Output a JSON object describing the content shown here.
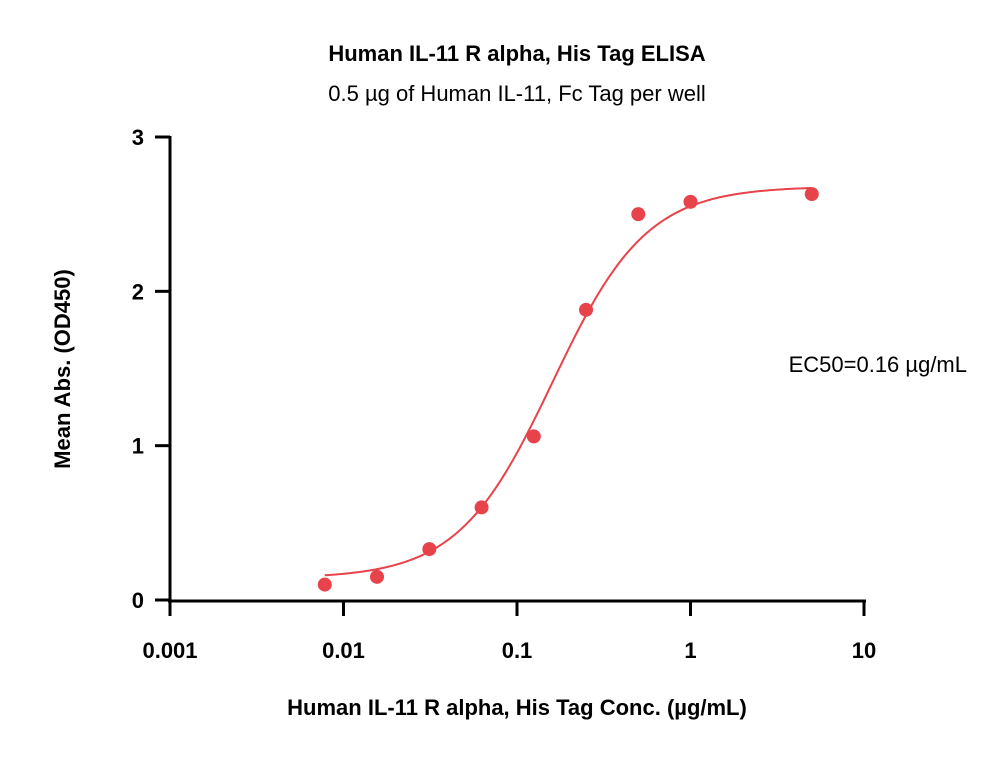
{
  "chart_data": {
    "type": "scatter",
    "title": "Human IL-11 R alpha, His Tag ELISA",
    "subtitle": "0.5 µg of Human IL-11, Fc Tag per well",
    "xlabel": "Human IL-11 R alpha, His Tag Conc. (µg/mL)",
    "ylabel": "Mean Abs. (OD450)",
    "x_scale": "log",
    "xlim": [
      0.001,
      10
    ],
    "ylim": [
      0,
      3
    ],
    "x_ticks": [
      0.001,
      0.01,
      0.1,
      1,
      10
    ],
    "x_tick_labels": [
      "0.001",
      "0.01",
      "0.1",
      "1",
      "10"
    ],
    "y_ticks": [
      0,
      1,
      2,
      3
    ],
    "y_tick_labels": [
      "0",
      "1",
      "2",
      "3"
    ],
    "grid": false,
    "color": "#e8424a",
    "series": [
      {
        "x": [
          0.0078,
          0.0156,
          0.03125,
          0.0625,
          0.125,
          0.25,
          0.5,
          1,
          5
        ],
        "y": [
          0.1,
          0.15,
          0.33,
          0.6,
          1.06,
          1.88,
          2.5,
          2.58,
          2.63
        ]
      }
    ],
    "fit": {
      "model": "4PL",
      "bottom": 0.14,
      "top": 2.68,
      "ec50": 0.16,
      "hill": 1.6,
      "x_range": [
        0.0078,
        5
      ]
    },
    "annotation": "EC50=0.16 µg/mL"
  }
}
